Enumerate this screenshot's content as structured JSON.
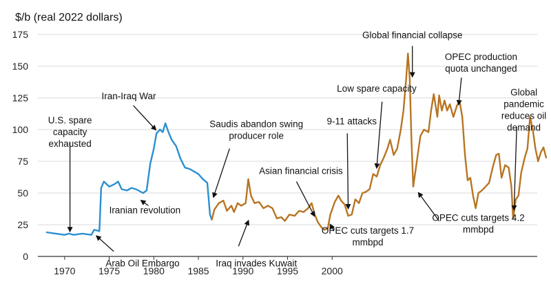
{
  "chart_data": {
    "type": "line",
    "ylabel": "$/b (real 2022 dollars)",
    "xlim": [
      1967,
      2023
    ],
    "ylim": [
      0,
      175
    ],
    "y_ticks": [
      0,
      25,
      50,
      75,
      100,
      125,
      150,
      175
    ],
    "x_ticks": [
      1970,
      1975,
      1980,
      1985,
      1990,
      1995,
      2000
    ],
    "grid": "horizontal",
    "series": [
      {
        "color": "#2a8fd0",
        "points": [
          [
            1968.0,
            19
          ],
          [
            1969.0,
            18
          ],
          [
            1970.0,
            17
          ],
          [
            1970.5,
            18
          ],
          [
            1971.0,
            17
          ],
          [
            1972.0,
            18
          ],
          [
            1973.0,
            17
          ],
          [
            1973.3,
            21
          ],
          [
            1973.9,
            20
          ],
          [
            1974.1,
            54
          ],
          [
            1974.4,
            59
          ],
          [
            1975.0,
            55
          ],
          [
            1975.6,
            57
          ],
          [
            1976.0,
            59
          ],
          [
            1976.4,
            53
          ],
          [
            1977.0,
            52
          ],
          [
            1977.5,
            54
          ],
          [
            1978.0,
            53
          ],
          [
            1978.8,
            50
          ],
          [
            1979.2,
            52
          ],
          [
            1979.6,
            73
          ],
          [
            1980.0,
            85
          ],
          [
            1980.3,
            97
          ],
          [
            1980.7,
            100
          ],
          [
            1981.0,
            98
          ],
          [
            1981.3,
            105
          ],
          [
            1981.7,
            97
          ],
          [
            1982.0,
            92
          ],
          [
            1982.5,
            87
          ],
          [
            1983.0,
            77
          ],
          [
            1983.5,
            70
          ],
          [
            1984.0,
            69
          ],
          [
            1984.5,
            67
          ],
          [
            1985.0,
            65
          ],
          [
            1985.5,
            61
          ],
          [
            1986.0,
            58
          ],
          [
            1986.3,
            33
          ],
          [
            1986.5,
            29
          ]
        ]
      },
      {
        "color": "#b87422",
        "points": [
          [
            1986.5,
            29
          ],
          [
            1986.8,
            37
          ],
          [
            1987.3,
            42
          ],
          [
            1987.8,
            44
          ],
          [
            1988.2,
            36
          ],
          [
            1988.7,
            40
          ],
          [
            1989.0,
            35
          ],
          [
            1989.4,
            42
          ],
          [
            1989.8,
            40
          ],
          [
            1990.3,
            42
          ],
          [
            1990.6,
            61
          ],
          [
            1990.9,
            48
          ],
          [
            1991.3,
            42
          ],
          [
            1991.8,
            43
          ],
          [
            1992.3,
            38
          ],
          [
            1992.8,
            40
          ],
          [
            1993.3,
            38
          ],
          [
            1993.8,
            30
          ],
          [
            1994.3,
            31
          ],
          [
            1994.7,
            28
          ],
          [
            1995.2,
            33
          ],
          [
            1995.8,
            32
          ],
          [
            1996.3,
            36
          ],
          [
            1996.8,
            35
          ],
          [
            1997.3,
            38
          ],
          [
            1997.7,
            42
          ],
          [
            1998.0,
            34
          ],
          [
            1998.4,
            27
          ],
          [
            1998.8,
            23
          ],
          [
            1999.1,
            21
          ],
          [
            1999.5,
            22
          ],
          [
            1999.8,
            33
          ],
          [
            2000.3,
            43
          ],
          [
            2000.7,
            48
          ],
          [
            2001.0,
            44
          ],
          [
            2001.4,
            41
          ],
          [
            2001.8,
            32
          ],
          [
            2002.2,
            33
          ],
          [
            2002.6,
            45
          ],
          [
            2003.0,
            42
          ],
          [
            2003.4,
            50
          ],
          [
            2003.8,
            51
          ],
          [
            2004.2,
            53
          ],
          [
            2004.6,
            65
          ],
          [
            2005.0,
            63
          ],
          [
            2005.4,
            72
          ],
          [
            2005.8,
            78
          ],
          [
            2006.2,
            85
          ],
          [
            2006.5,
            92
          ],
          [
            2006.9,
            80
          ],
          [
            2007.3,
            85
          ],
          [
            2007.7,
            100
          ],
          [
            2008.0,
            115
          ],
          [
            2008.3,
            140
          ],
          [
            2008.5,
            160
          ],
          [
            2008.7,
            140
          ],
          [
            2008.9,
            90
          ],
          [
            2009.1,
            55
          ],
          [
            2009.5,
            75
          ],
          [
            2009.9,
            95
          ],
          [
            2010.3,
            100
          ],
          [
            2010.8,
            98
          ],
          [
            2011.1,
            115
          ],
          [
            2011.4,
            128
          ],
          [
            2011.8,
            110
          ],
          [
            2012.0,
            127
          ],
          [
            2012.3,
            115
          ],
          [
            2012.6,
            123
          ],
          [
            2012.9,
            115
          ],
          [
            2013.2,
            120
          ],
          [
            2013.6,
            110
          ],
          [
            2014.0,
            119
          ],
          [
            2014.3,
            122
          ],
          [
            2014.6,
            110
          ],
          [
            2014.9,
            80
          ],
          [
            2015.2,
            60
          ],
          [
            2015.5,
            62
          ],
          [
            2015.8,
            48
          ],
          [
            2016.1,
            38
          ],
          [
            2016.4,
            50
          ],
          [
            2016.8,
            52
          ],
          [
            2017.2,
            55
          ],
          [
            2017.6,
            58
          ],
          [
            2018.0,
            70
          ],
          [
            2018.4,
            80
          ],
          [
            2018.7,
            81
          ],
          [
            2019.0,
            62
          ],
          [
            2019.4,
            72
          ],
          [
            2019.8,
            70
          ],
          [
            2020.1,
            55
          ],
          [
            2020.3,
            30
          ],
          [
            2020.6,
            45
          ],
          [
            2020.9,
            48
          ],
          [
            2021.2,
            66
          ],
          [
            2021.6,
            78
          ],
          [
            2021.9,
            85
          ],
          [
            2022.2,
            110
          ],
          [
            2022.5,
            100
          ],
          [
            2022.8,
            85
          ],
          [
            2023.1,
            75
          ],
          [
            2023.4,
            82
          ],
          [
            2023.7,
            86
          ],
          [
            2024.0,
            78
          ]
        ]
      }
    ],
    "annotations": [
      {
        "lines": [
          "U.S. spare",
          "capacity",
          "exhausted"
        ],
        "anchor": "middle",
        "tx": 1970.6,
        "ty": 105,
        "arrow": [
          [
            1970.6,
            90
          ],
          [
            1970.6,
            20
          ]
        ]
      },
      {
        "lines": [
          "Arab Oil Embargo"
        ],
        "anchor": "start",
        "tx": 1974.6,
        "ty": -8,
        "arrow": [
          [
            1975.5,
            4
          ],
          [
            1973.6,
            16
          ]
        ]
      },
      {
        "lines": [
          "Iran-Iraq War"
        ],
        "anchor": "middle",
        "tx": 1977.2,
        "ty": 124,
        "arrow": [
          [
            1977.7,
            119
          ],
          [
            1980.2,
            100
          ]
        ]
      },
      {
        "lines": [
          "Iranian revolution"
        ],
        "anchor": "middle",
        "tx": 1979.0,
        "ty": 34,
        "arrow": [
          [
            1979.4,
            40
          ],
          [
            1978.6,
            44
          ]
        ]
      },
      {
        "lines": [
          "Saudis abandon swing",
          "producer role"
        ],
        "anchor": "middle",
        "tx": 1991.5,
        "ty": 102,
        "arrow": [
          [
            1988.5,
            85
          ],
          [
            1986.7,
            47
          ]
        ]
      },
      {
        "lines": [
          "Asian financial crisis"
        ],
        "anchor": "middle",
        "tx": 1996.5,
        "ty": 65,
        "arrow": [
          [
            1996.0,
            59
          ],
          [
            1998.0,
            32
          ]
        ]
      },
      {
        "lines": [
          "Iraq invades Kuwait"
        ],
        "anchor": "middle",
        "tx": 1991.5,
        "ty": -8,
        "arrow": [
          [
            1989.5,
            8
          ],
          [
            1990.6,
            28
          ]
        ]
      },
      {
        "lines": [
          "9-11 attacks"
        ],
        "anchor": "middle",
        "tx": 2002.2,
        "ty": 104,
        "arrow": [
          [
            2001.7,
            97
          ],
          [
            2001.8,
            38
          ]
        ]
      },
      {
        "lines": [
          "Low spare capacity"
        ],
        "anchor": "middle",
        "tx": 2005.0,
        "ty": 130,
        "arrow": [
          [
            2005.6,
            122
          ],
          [
            2005.0,
            70
          ]
        ]
      },
      {
        "lines": [
          "OPEC cuts targets 1.7",
          "mmbpd"
        ],
        "anchor": "middle",
        "tx": 2004.0,
        "ty": 18,
        "arrow": [
          [
            2000.2,
            20
          ],
          [
            1999.8,
            25
          ]
        ]
      },
      {
        "lines": [
          "Global financial collapse"
        ],
        "anchor": "middle",
        "tx": 2009.0,
        "ty": 172,
        "arrow": [
          [
            2009.0,
            166
          ],
          [
            2009.0,
            142
          ]
        ]
      },
      {
        "lines": [
          "OPEC production",
          "quota unchanged"
        ],
        "anchor": "middle",
        "tx": 2016.7,
        "ty": 155,
        "arrow": [
          [
            2014.5,
            141
          ],
          [
            2014.2,
            120
          ]
        ]
      },
      {
        "lines": [
          "OPEC cuts targets 4.2",
          "mmbpd"
        ],
        "anchor": "middle",
        "tx": 2016.4,
        "ty": 28,
        "arrow": [
          [
            2012.0,
            28
          ],
          [
            2009.7,
            50
          ]
        ]
      },
      {
        "lines": [
          "Global",
          "pandemic",
          "reduces oil",
          "demand"
        ],
        "anchor": "middle",
        "tx": 2021.5,
        "ty": 127,
        "arrow": [
          [
            2020.7,
            102
          ],
          [
            2020.4,
            37
          ]
        ]
      }
    ]
  }
}
